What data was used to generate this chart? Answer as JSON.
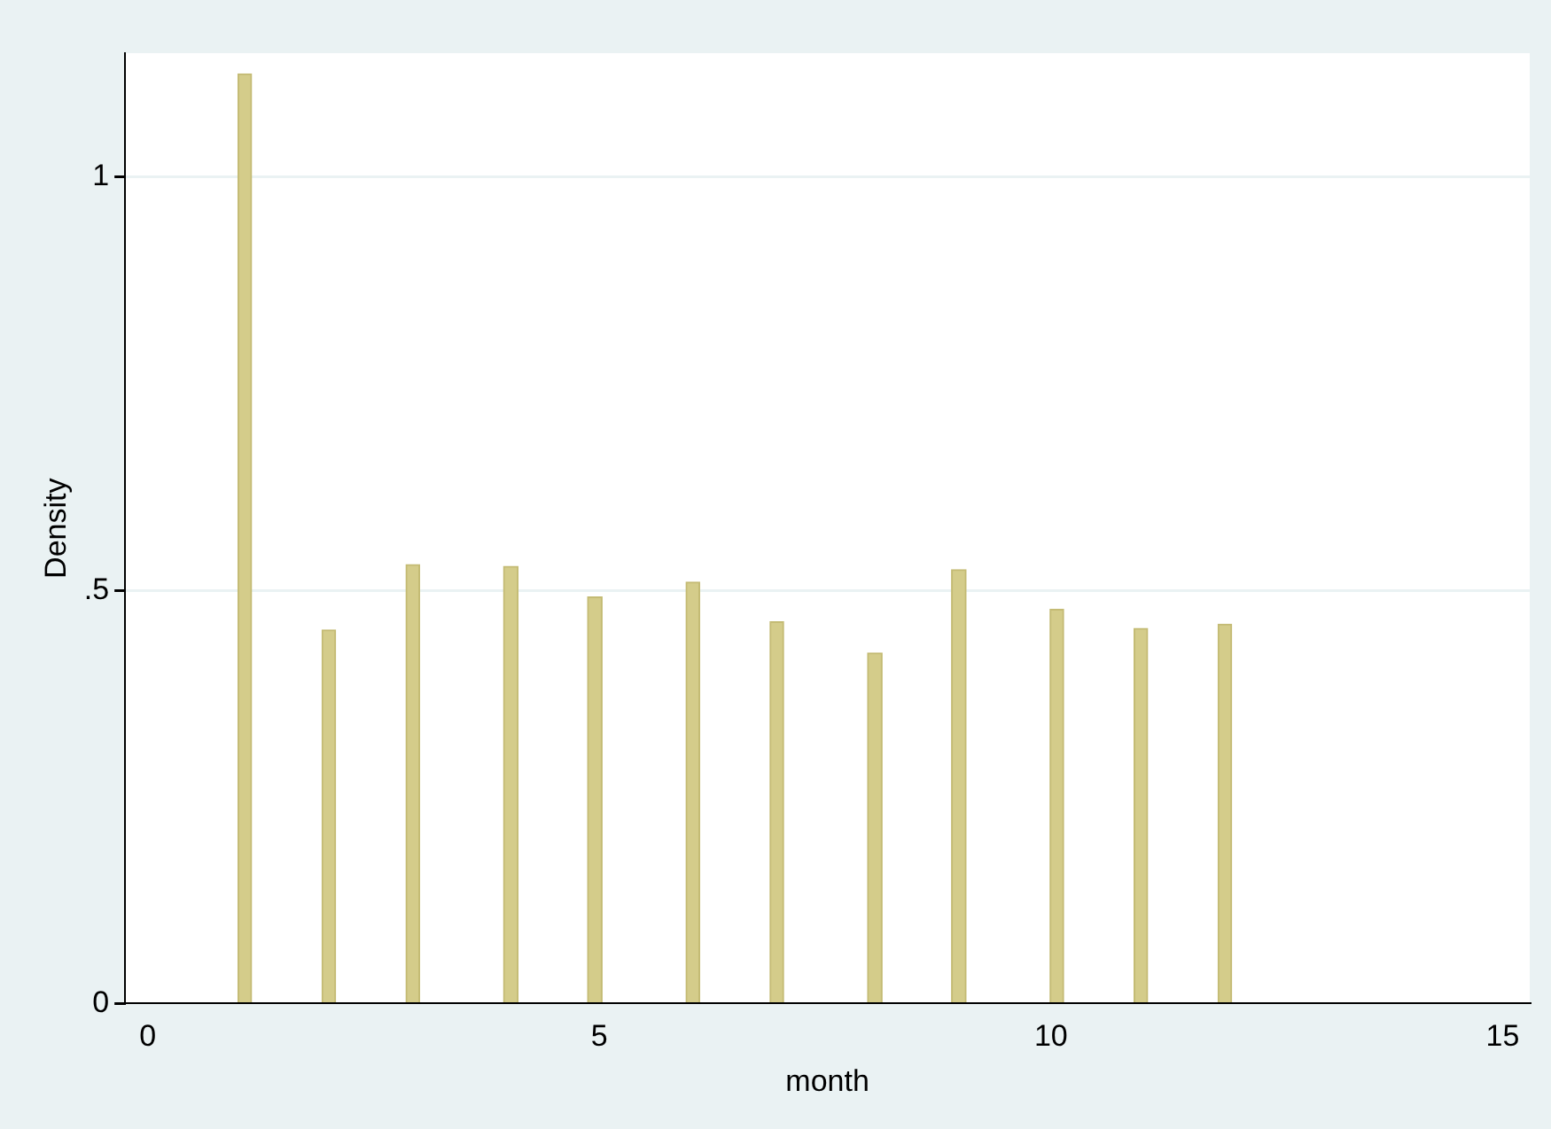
{
  "chart_data": {
    "type": "histogram",
    "xlabel": "month",
    "ylabel": "Density",
    "bins": [
      1,
      1.15,
      1.93,
      2.08,
      2.86,
      3.01,
      3.94,
      4.1,
      4.87,
      5.03,
      5.96,
      6.11,
      6.89,
      7.04,
      7.97,
      8.13,
      8.9,
      9.06,
      9.99,
      10.14,
      10.92,
      11.07,
      11.85,
      12
    ],
    "values": [
      1.125,
      0,
      0.452,
      0,
      0.531,
      0,
      0.529,
      0,
      0.492,
      0,
      0.51,
      0,
      0.462,
      0,
      0.424,
      0,
      0.525,
      0,
      0.477,
      0,
      0.454,
      0,
      0.459
    ],
    "color": "#d4cc8a",
    "xlim": [
      -0.25,
      15.3
    ],
    "xticks": [
      0,
      5,
      10,
      15
    ],
    "ylim": [
      0,
      1.15
    ],
    "yticks": [
      0,
      {
        "value": 0.5,
        "label": ".5"
      },
      1
    ],
    "grid": "y"
  }
}
